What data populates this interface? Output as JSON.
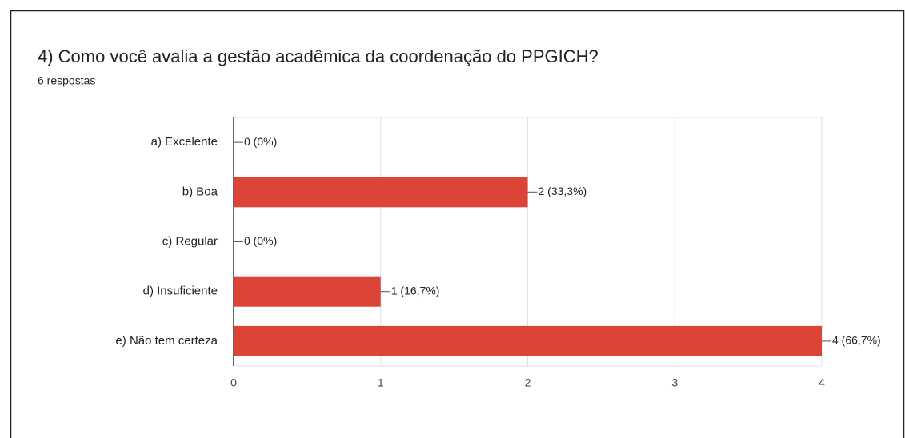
{
  "chart_data": {
    "type": "bar",
    "orientation": "horizontal",
    "title": "4) Como você avalia a gestão acadêmica da coordenação do PPGICH?",
    "subtitle": "6 respostas",
    "categories": [
      "a) Excelente",
      "b) Boa",
      "c) Regular",
      "d) Insuficiente",
      "e) Não tem certeza"
    ],
    "values": [
      0,
      2,
      0,
      1,
      4
    ],
    "value_labels": [
      "0 (0%)",
      "2 (33,3%)",
      "0 (0%)",
      "1 (16,7%)",
      "4 (66,7%)"
    ],
    "color": "#db4437",
    "xlim": [
      0,
      4
    ],
    "xticks": [
      0,
      1,
      2,
      3,
      4
    ],
    "grid": true
  }
}
